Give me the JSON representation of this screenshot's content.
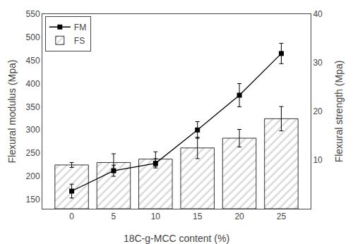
{
  "chart_data": {
    "type": "bar",
    "x": [
      0,
      5,
      10,
      15,
      20,
      25
    ],
    "xlabel": "18C-g-MCC content (%)",
    "ylabel": "Flexural modulus (Mpa)",
    "y2label": "Flexural strength (Mpa)",
    "xlim": [
      -3.5,
      28.5
    ],
    "xticks": [
      0,
      5,
      10,
      15,
      20,
      25
    ],
    "ylim": [
      130,
      550
    ],
    "yticks": [
      150,
      200,
      250,
      300,
      350,
      400,
      450,
      500,
      550
    ],
    "y2lim": [
      0,
      40
    ],
    "y2ticks": [
      10,
      20,
      30,
      40
    ],
    "grid": false,
    "legend": "upper left",
    "series": [
      {
        "name": "FM",
        "type": "line",
        "color": "#000000",
        "marker": "square",
        "line_style": "solid",
        "values": [
          168,
          212,
          228,
          300,
          375,
          465
        ],
        "errors": [
          15,
          12,
          10,
          18,
          25,
          22
        ]
      },
      {
        "name": "FS",
        "type": "bar",
        "axis": "y2",
        "color": "#d8d8d8",
        "values": [
          9.0,
          9.5,
          10.2,
          12.5,
          14.5,
          18.5
        ],
        "errors": [
          0.5,
          1.8,
          1.5,
          2.2,
          1.8,
          2.5
        ]
      }
    ]
  }
}
